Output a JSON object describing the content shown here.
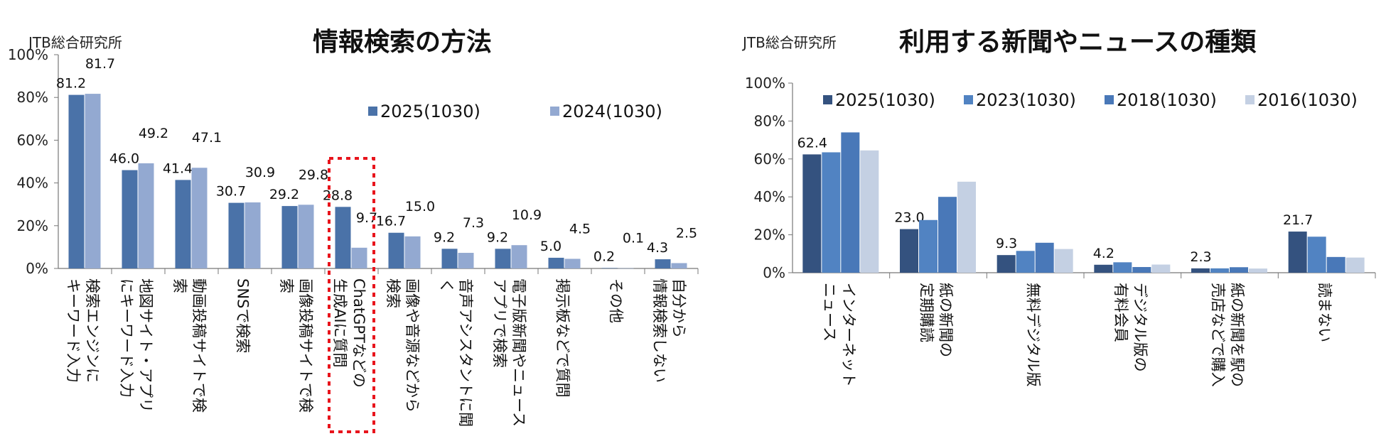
{
  "left": {
    "source": "JTB総合研究所",
    "title": "情報検索の方法",
    "chart_data": {
      "type": "bar",
      "title": "情報検索の方法",
      "ylim": [
        0,
        100
      ],
      "yticks": [
        "0%",
        "20%",
        "40%",
        "60%",
        "80%",
        "100%"
      ],
      "categories": [
        "検索エンジンに キーワード入力",
        "地図サイト・アプリ にキーワード入力",
        "動画投稿サイトで検 索",
        "SNSで検索",
        "画像投稿サイトで検 索",
        "ChatGPTなどの 生成AIに質問",
        "画像や音源などから 検索",
        "音声アシスタントに聞 く",
        "電子版新聞やニュース アプリで検索",
        "掲示板などで質問",
        "その他",
        "自分から 情報検索しない"
      ],
      "series": [
        {
          "name": "2025(1030)",
          "color": "#4a72a8",
          "values": [
            81.2,
            46.0,
            41.4,
            30.7,
            29.2,
            28.8,
            16.7,
            9.2,
            9.2,
            5.0,
            0.2,
            4.3
          ],
          "labels": [
            "81.2",
            "46.0",
            "41.4",
            "30.7",
            "29.2",
            "28.8",
            "16.7",
            "9.2",
            "9.2",
            "5.0",
            "0.2",
            "4.3"
          ]
        },
        {
          "name": "2024(1030)",
          "color": "#93a9d1",
          "values": [
            81.7,
            49.2,
            47.1,
            30.9,
            29.8,
            9.7,
            15.0,
            7.3,
            10.9,
            4.5,
            0.1,
            2.5
          ],
          "labels": [
            "81.7",
            "49.2",
            "47.1",
            "30.9",
            "29.8",
            "9.7",
            "15.0",
            "7.3",
            "10.9",
            "4.5",
            "0.1",
            "2.5"
          ]
        }
      ],
      "highlight_category": "ChatGPTなどの 生成AIに質問",
      "highlight_color": "#e8141c"
    }
  },
  "right": {
    "source": "JTB総合研究所",
    "title": "利用する新聞やニュースの種類",
    "chart_data": {
      "type": "bar",
      "title": "利用する新聞やニュースの種類",
      "ylim": [
        0,
        100
      ],
      "yticks": [
        "0%",
        "20%",
        "40%",
        "60%",
        "80%",
        "100%"
      ],
      "categories": [
        "インターネット ニュース",
        "紙の新聞の 定期購読",
        "無料デジタル版",
        "デジタル版の 有料会員",
        "紙の新聞を駅の 売店などで購入",
        "読まない"
      ],
      "series": [
        {
          "name": "2025(1030)",
          "color": "#34527f",
          "values": [
            62.4,
            23.0,
            9.3,
            4.2,
            2.3,
            21.7
          ],
          "labels": [
            "62.4",
            "23.0",
            "9.3",
            "4.2",
            "2.3",
            "21.7"
          ]
        },
        {
          "name": "2023(1030)",
          "color": "#5183c2",
          "values": [
            63.5,
            27.8,
            11.5,
            5.5,
            2.3,
            19.0
          ],
          "labels": []
        },
        {
          "name": "2018(1030)",
          "color": "#4978b8",
          "values": [
            74.0,
            40.0,
            15.8,
            3.0,
            2.9,
            8.3
          ],
          "labels": []
        },
        {
          "name": "2016(1030)",
          "color": "#c4d0e3",
          "values": [
            64.5,
            48.0,
            12.5,
            4.3,
            2.2,
            8.0
          ],
          "labels": []
        }
      ]
    }
  }
}
